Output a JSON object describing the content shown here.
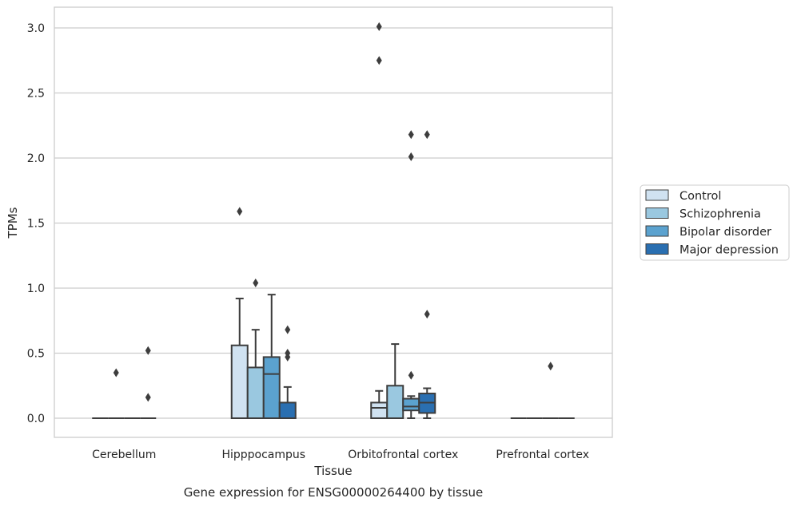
{
  "chart_data": {
    "type": "box",
    "xlabel": "Tissue",
    "ylabel": "TPMs",
    "caption": "Gene expression for ENSG00000264400 by tissue",
    "ylim": [
      -0.15,
      3.17
    ],
    "yticks": [
      0.0,
      0.5,
      1.0,
      1.5,
      2.0,
      2.5,
      3.0
    ],
    "ytick_labels": [
      "0.0",
      "0.5",
      "1.0",
      "1.5",
      "2.0",
      "2.5",
      "3.0"
    ],
    "grid": "horizontal",
    "legend_position": "right",
    "categories": [
      "Cerebellum",
      "Hipppocampus",
      "Orbitofrontal cortex",
      "Prefrontal cortex"
    ],
    "series": [
      {
        "name": "Control",
        "color": "#d0e2f1",
        "boxes": [
          {
            "q1": 0,
            "median": 0,
            "q3": 0,
            "whislo": 0,
            "whishi": 0,
            "fliers": []
          },
          {
            "q1": 0,
            "median": 0,
            "q3": 0.56,
            "whislo": 0,
            "whishi": 0.92,
            "fliers": [
              1.59
            ]
          },
          {
            "q1": 0,
            "median": 0.08,
            "q3": 0.12,
            "whislo": 0,
            "whishi": 0.21,
            "fliers": [
              2.75,
              3.01
            ]
          },
          {
            "q1": 0,
            "median": 0,
            "q3": 0,
            "whislo": 0,
            "whishi": 0,
            "fliers": []
          }
        ]
      },
      {
        "name": "Schizophrenia",
        "color": "#9ac8e0",
        "boxes": [
          {
            "q1": 0,
            "median": 0,
            "q3": 0,
            "whislo": 0,
            "whishi": 0,
            "fliers": [
              0.35
            ]
          },
          {
            "q1": 0,
            "median": 0,
            "q3": 0.39,
            "whislo": 0,
            "whishi": 0.68,
            "fliers": [
              1.04
            ]
          },
          {
            "q1": 0,
            "median": 0,
            "q3": 0.25,
            "whislo": 0,
            "whishi": 0.57,
            "fliers": []
          },
          {
            "q1": 0,
            "median": 0,
            "q3": 0,
            "whislo": 0,
            "whishi": 0,
            "fliers": []
          }
        ]
      },
      {
        "name": "Bipolar disorder",
        "color": "#5ba2cf",
        "boxes": [
          {
            "q1": 0,
            "median": 0,
            "q3": 0,
            "whislo": 0,
            "whishi": 0,
            "fliers": []
          },
          {
            "q1": 0,
            "median": 0.34,
            "q3": 0.47,
            "whislo": 0,
            "whishi": 0.95,
            "fliers": []
          },
          {
            "q1": 0.06,
            "median": 0.09,
            "q3": 0.15,
            "whislo": 0,
            "whishi": 0.17,
            "fliers": [
              0.33,
              2.01,
              2.18
            ]
          },
          {
            "q1": 0,
            "median": 0,
            "q3": 0,
            "whislo": 0,
            "whishi": 0,
            "fliers": [
              0.4
            ]
          }
        ]
      },
      {
        "name": "Major depression",
        "color": "#2a6fb1",
        "boxes": [
          {
            "q1": 0,
            "median": 0,
            "q3": 0,
            "whislo": 0,
            "whishi": 0,
            "fliers": [
              0.16,
              0.52
            ]
          },
          {
            "q1": 0,
            "median": 0,
            "q3": 0.12,
            "whislo": 0,
            "whishi": 0.24,
            "fliers": [
              0.47,
              0.5,
              0.68
            ]
          },
          {
            "q1": 0.04,
            "median": 0.12,
            "q3": 0.19,
            "whislo": 0,
            "whishi": 0.23,
            "fliers": [
              0.8,
              2.18
            ]
          },
          {
            "q1": 0,
            "median": 0,
            "q3": 0,
            "whislo": 0,
            "whishi": 0,
            "fliers": []
          }
        ]
      }
    ]
  }
}
